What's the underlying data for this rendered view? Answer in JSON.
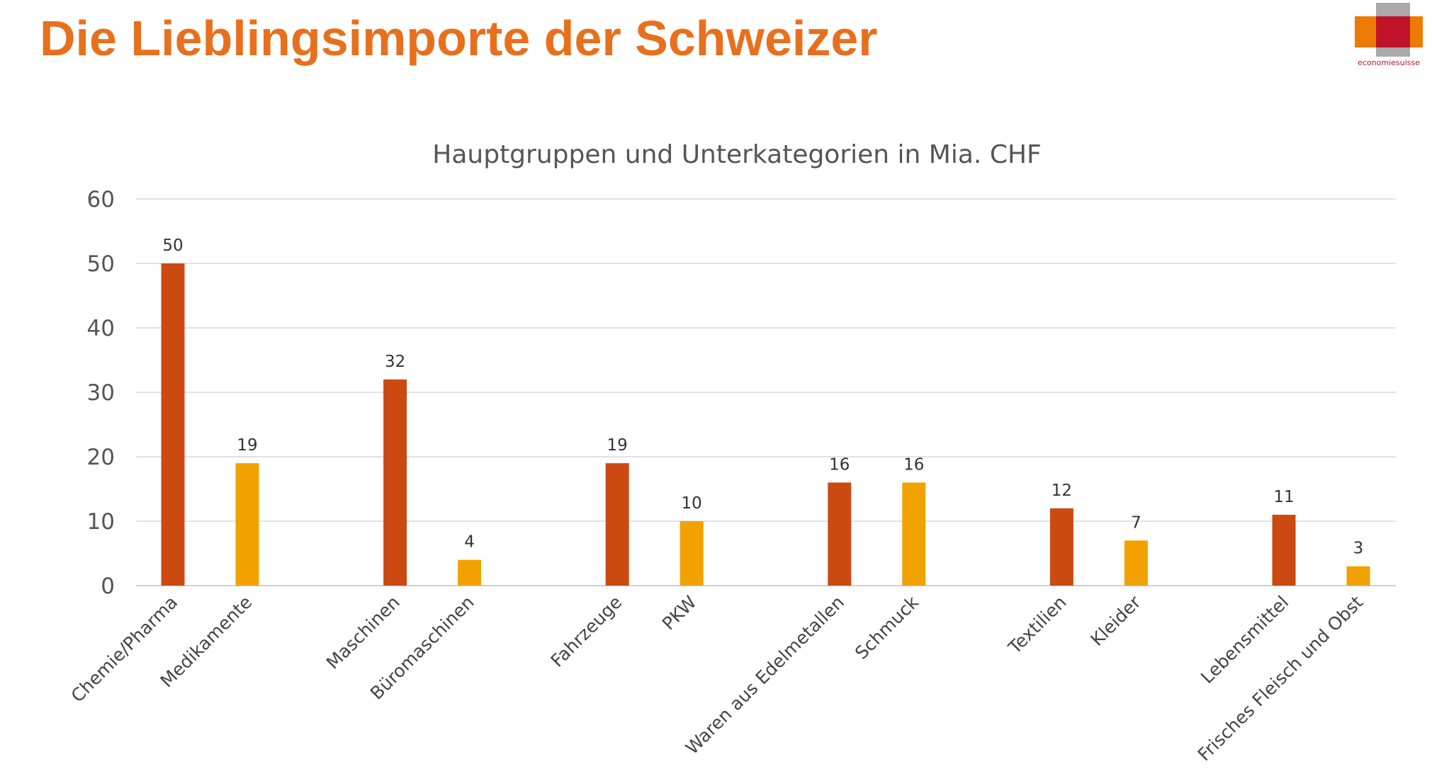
{
  "page": {
    "title": "Die Lieblingsimporte der Schweizer",
    "logo_text": "economiesuisse"
  },
  "colors": {
    "title": "#e8701d",
    "main_category": "#cc4a12",
    "subcategory": "#f2a200",
    "grid": "#d9d9d9"
  },
  "chart_data": {
    "type": "bar",
    "title": "Hauptgruppen und Unterkategorien in Mia. CHF",
    "xlabel": "",
    "ylabel": "",
    "ylim": [
      0,
      60
    ],
    "yticks": [
      0,
      10,
      20,
      30,
      40,
      50,
      60
    ],
    "grid": true,
    "legend": "none",
    "groups": [
      {
        "main": {
          "label": "Chemie/Pharma",
          "value": 50
        },
        "sub": {
          "label": "Medikamente",
          "value": 19
        }
      },
      {
        "main": {
          "label": "Maschinen",
          "value": 32
        },
        "sub": {
          "label": "Büromaschinen",
          "value": 4
        }
      },
      {
        "main": {
          "label": "Fahrzeuge",
          "value": 19
        },
        "sub": {
          "label": "PKW",
          "value": 10
        }
      },
      {
        "main": {
          "label": "Waren aus Edelmetallen",
          "value": 16
        },
        "sub": {
          "label": "Schmuck",
          "value": 16
        }
      },
      {
        "main": {
          "label": "Textilien",
          "value": 12
        },
        "sub": {
          "label": "Kleider",
          "value": 7
        }
      },
      {
        "main": {
          "label": "Lebensmittel",
          "value": 11
        },
        "sub": {
          "label": "Frisches Fleisch und Obst",
          "value": 3
        }
      }
    ]
  }
}
